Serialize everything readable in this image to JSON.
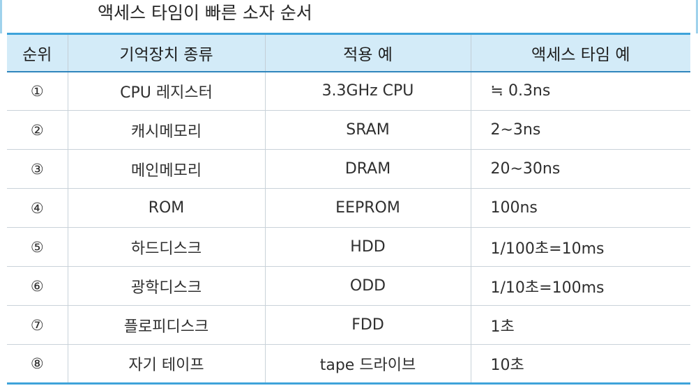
{
  "title": "액세스 타임이 빠른 소자 순서",
  "table": {
    "headers": [
      "순위",
      "기억장치 종류",
      "적용 예",
      "액세스 타임 예"
    ],
    "rows": [
      [
        "①",
        "CPU 레지스터",
        "3.3GHz CPU",
        "≒ 0.3ns"
      ],
      [
        "②",
        "캐시메모리",
        "SRAM",
        "2∼3ns"
      ],
      [
        "③",
        "메인메모리",
        "DRAM",
        "20∼30ns"
      ],
      [
        "④",
        "ROM",
        "EEPROM",
        "100ns"
      ],
      [
        "⑤",
        "하드디스크",
        "HDD",
        "1/100초=10ms"
      ],
      [
        "⑥",
        "광학디스크",
        "ODD",
        "1/10초=100ms"
      ],
      [
        "⑦",
        "플로피디스크",
        "FDD",
        "1초"
      ],
      [
        "⑧",
        "자기 테이프",
        "tape 드라이브",
        "10초"
      ]
    ]
  },
  "colors": {
    "accent": "#3ea3da",
    "header_background": "#d3ebf8",
    "grid": "#c9d2d9"
  }
}
